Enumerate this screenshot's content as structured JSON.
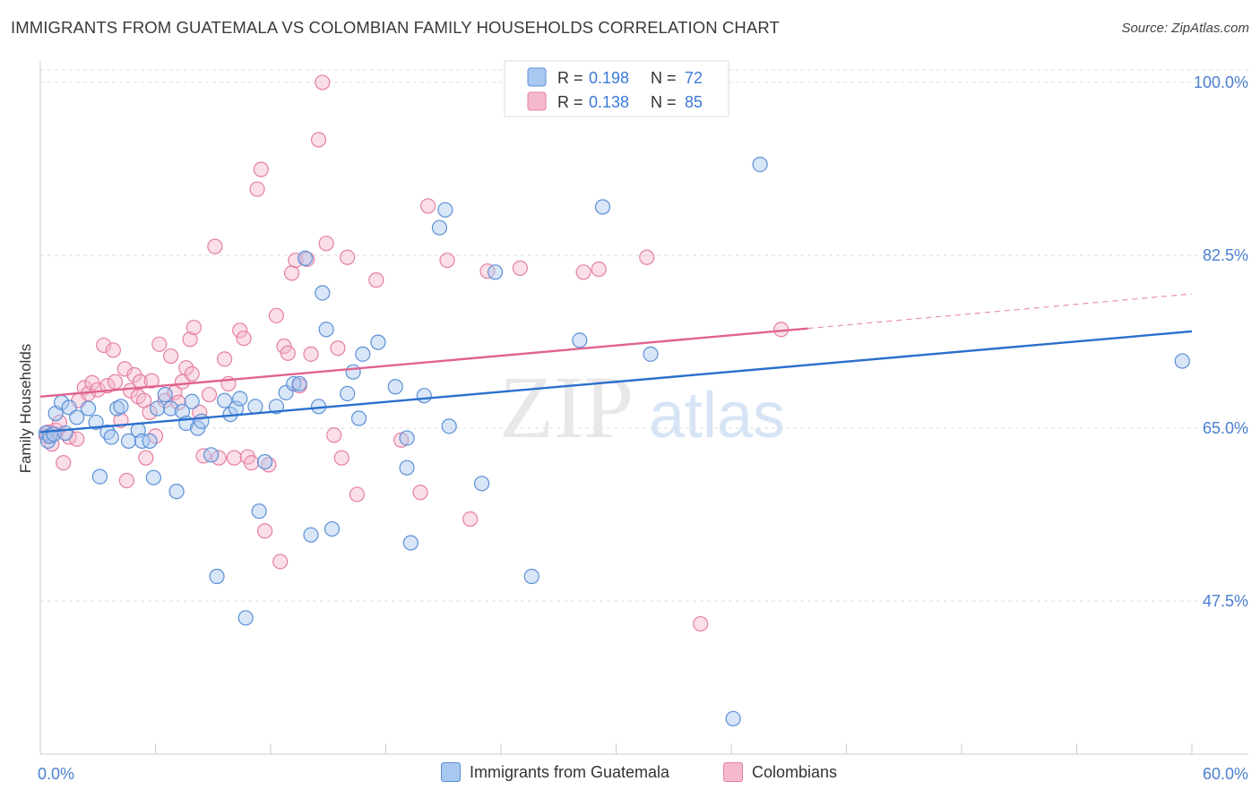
{
  "title": "IMMIGRANTS FROM GUATEMALA VS COLOMBIAN FAMILY HOUSEHOLDS CORRELATION CHART",
  "source": "Source: ZipAtlas.com",
  "watermark": {
    "zip": "ZIP",
    "atlas": "atlas"
  },
  "colors": {
    "blue_fill": "#a9c8f0",
    "blue_stroke": "#5b8fd6",
    "blue_line": "#2b6fcc",
    "pink_fill": "#f5b9cc",
    "pink_stroke": "#e57fa2",
    "pink_line": "#e0628f",
    "grid": "#dddddd",
    "axis_text": "#4a7fd0"
  },
  "legend": {
    "rows": [
      {
        "series": "Immigrants from Guatemala",
        "r_label": "R =",
        "r_value": "0.198",
        "n_label": "N =",
        "n_value": "72"
      },
      {
        "series": "Colombians",
        "r_label": "R =",
        "r_value": "0.138",
        "n_label": "N =",
        "n_value": "85"
      }
    ]
  },
  "chart_data": {
    "type": "scatter",
    "title": "IMMIGRANTS FROM GUATEMALA VS COLOMBIAN FAMILY HOUSEHOLDS CORRELATION CHART",
    "xlabel": "",
    "ylabel": "Family Households",
    "xlim": [
      0,
      60
    ],
    "ylim": [
      32,
      102
    ],
    "x_tick_labels": [
      "0.0%",
      "60.0%"
    ],
    "y_ticks": [
      47.5,
      65.0,
      82.5,
      100.0
    ],
    "y_tick_labels": [
      "47.5%",
      "65.0%",
      "82.5%",
      "100.0%"
    ],
    "grid": true,
    "legend_position": "top-center",
    "series": [
      {
        "name": "Immigrants from Guatemala",
        "color": "#a9c8f0",
        "trend": {
          "x": [
            0,
            60
          ],
          "y": [
            64.6,
            74.8
          ]
        },
        "points": [
          [
            0.3,
            64.5
          ],
          [
            0.4,
            63.7
          ],
          [
            0.5,
            64.2
          ],
          [
            0.7,
            64.4
          ],
          [
            0.8,
            66.5
          ],
          [
            1.1,
            67.6
          ],
          [
            1.3,
            64.5
          ],
          [
            1.5,
            67.1
          ],
          [
            1.9,
            66.1
          ],
          [
            2.5,
            67.0
          ],
          [
            2.9,
            65.6
          ],
          [
            3.1,
            60.1
          ],
          [
            3.5,
            64.6
          ],
          [
            3.7,
            64.1
          ],
          [
            4.0,
            67.0
          ],
          [
            4.2,
            67.2
          ],
          [
            4.6,
            63.7
          ],
          [
            5.1,
            64.8
          ],
          [
            5.3,
            63.7
          ],
          [
            5.7,
            63.7
          ],
          [
            5.9,
            60.0
          ],
          [
            6.1,
            67.0
          ],
          [
            6.5,
            68.4
          ],
          [
            6.8,
            67.0
          ],
          [
            7.1,
            58.6
          ],
          [
            7.4,
            66.7
          ],
          [
            7.6,
            65.5
          ],
          [
            7.9,
            67.7
          ],
          [
            8.2,
            65.0
          ],
          [
            8.4,
            65.7
          ],
          [
            8.9,
            62.3
          ],
          [
            9.2,
            50.0
          ],
          [
            9.6,
            67.8
          ],
          [
            9.9,
            66.4
          ],
          [
            10.2,
            67.0
          ],
          [
            10.4,
            68.0
          ],
          [
            10.7,
            45.8
          ],
          [
            11.2,
            67.2
          ],
          [
            11.4,
            56.6
          ],
          [
            11.7,
            61.6
          ],
          [
            12.3,
            67.2
          ],
          [
            12.8,
            68.6
          ],
          [
            13.2,
            69.5
          ],
          [
            13.5,
            69.5
          ],
          [
            13.8,
            82.2
          ],
          [
            14.1,
            54.2
          ],
          [
            14.5,
            67.2
          ],
          [
            14.7,
            78.7
          ],
          [
            14.9,
            75.0
          ],
          [
            15.2,
            54.8
          ],
          [
            16.0,
            68.5
          ],
          [
            16.3,
            70.7
          ],
          [
            16.6,
            66.0
          ],
          [
            16.8,
            72.5
          ],
          [
            17.6,
            73.7
          ],
          [
            18.5,
            69.2
          ],
          [
            19.1,
            64.0
          ],
          [
            19.1,
            61.0
          ],
          [
            19.3,
            53.4
          ],
          [
            20.0,
            68.3
          ],
          [
            20.8,
            85.3
          ],
          [
            21.1,
            87.1
          ],
          [
            21.3,
            65.2
          ],
          [
            23.0,
            59.4
          ],
          [
            23.7,
            80.8
          ],
          [
            25.6,
            50.0
          ],
          [
            28.1,
            73.9
          ],
          [
            29.3,
            87.4
          ],
          [
            31.8,
            72.5
          ],
          [
            36.1,
            35.6
          ],
          [
            37.5,
            91.7
          ],
          [
            59.5,
            71.8
          ]
        ]
      },
      {
        "name": "Colombians",
        "color": "#f5b9cc",
        "trend": {
          "x": [
            0,
            40
          ],
          "y": [
            68.2,
            75.1
          ]
        },
        "trend_extension": {
          "x": [
            40,
            60
          ],
          "y": [
            75.1,
            78.6
          ]
        },
        "points": [
          [
            0.3,
            64.2
          ],
          [
            0.4,
            64.6
          ],
          [
            0.6,
            63.4
          ],
          [
            0.8,
            64.8
          ],
          [
            1.0,
            65.6
          ],
          [
            1.2,
            61.5
          ],
          [
            1.5,
            64.1
          ],
          [
            1.9,
            63.9
          ],
          [
            2.0,
            67.8
          ],
          [
            2.3,
            69.1
          ],
          [
            2.5,
            68.5
          ],
          [
            2.7,
            69.6
          ],
          [
            3.0,
            68.9
          ],
          [
            3.3,
            73.4
          ],
          [
            3.5,
            69.3
          ],
          [
            3.8,
            72.9
          ],
          [
            3.9,
            69.7
          ],
          [
            4.2,
            65.8
          ],
          [
            4.4,
            71.0
          ],
          [
            4.5,
            59.7
          ],
          [
            4.7,
            68.8
          ],
          [
            4.9,
            70.4
          ],
          [
            5.1,
            68.2
          ],
          [
            5.2,
            69.7
          ],
          [
            5.4,
            67.8
          ],
          [
            5.5,
            62.0
          ],
          [
            5.7,
            66.6
          ],
          [
            5.8,
            69.8
          ],
          [
            6.0,
            64.2
          ],
          [
            6.2,
            73.5
          ],
          [
            6.5,
            67.8
          ],
          [
            6.8,
            72.3
          ],
          [
            7.0,
            68.6
          ],
          [
            7.2,
            67.6
          ],
          [
            7.4,
            69.7
          ],
          [
            7.6,
            71.1
          ],
          [
            7.8,
            74.0
          ],
          [
            7.9,
            70.5
          ],
          [
            8.0,
            75.2
          ],
          [
            8.3,
            66.6
          ],
          [
            8.5,
            62.2
          ],
          [
            8.8,
            68.4
          ],
          [
            9.1,
            83.4
          ],
          [
            9.3,
            62.0
          ],
          [
            9.6,
            72.0
          ],
          [
            9.8,
            69.5
          ],
          [
            10.1,
            62.0
          ],
          [
            10.4,
            74.9
          ],
          [
            10.6,
            74.1
          ],
          [
            10.8,
            62.1
          ],
          [
            11.0,
            61.5
          ],
          [
            11.3,
            89.2
          ],
          [
            11.5,
            91.2
          ],
          [
            11.7,
            54.6
          ],
          [
            11.9,
            61.3
          ],
          [
            12.3,
            76.4
          ],
          [
            12.5,
            51.5
          ],
          [
            12.7,
            73.3
          ],
          [
            12.9,
            72.6
          ],
          [
            13.1,
            80.7
          ],
          [
            13.3,
            82.0
          ],
          [
            13.5,
            69.3
          ],
          [
            13.9,
            82.1
          ],
          [
            14.1,
            72.5
          ],
          [
            14.5,
            94.2
          ],
          [
            14.7,
            100.0
          ],
          [
            14.9,
            83.7
          ],
          [
            15.3,
            64.3
          ],
          [
            15.5,
            73.1
          ],
          [
            15.7,
            62.0
          ],
          [
            16.0,
            82.3
          ],
          [
            16.5,
            58.3
          ],
          [
            17.5,
            80.0
          ],
          [
            18.8,
            63.8
          ],
          [
            19.8,
            58.5
          ],
          [
            20.2,
            87.5
          ],
          [
            21.2,
            82.0
          ],
          [
            22.4,
            55.8
          ],
          [
            23.3,
            80.9
          ],
          [
            25.0,
            81.2
          ],
          [
            28.3,
            80.8
          ],
          [
            29.1,
            81.1
          ],
          [
            31.6,
            82.3
          ],
          [
            34.4,
            45.2
          ],
          [
            38.6,
            75.0
          ]
        ]
      }
    ]
  }
}
